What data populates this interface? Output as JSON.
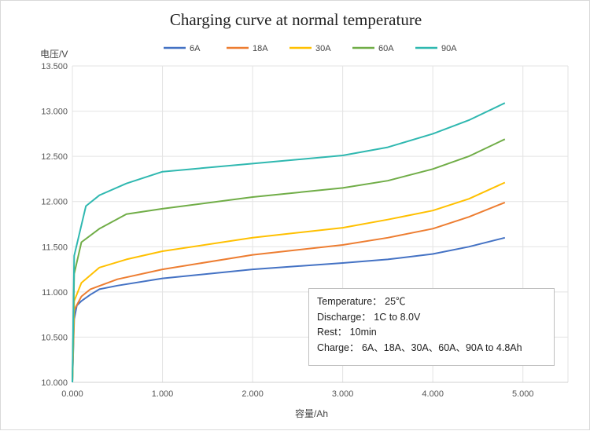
{
  "chart_data": {
    "type": "line",
    "title": "Charging curve at normal temperature",
    "xlabel": "容量/Ah",
    "ylabel": "电压/V",
    "xlim": [
      0,
      5.5
    ],
    "ylim": [
      10,
      13.5
    ],
    "xticks": [
      "0.000",
      "1.000",
      "2.000",
      "3.000",
      "4.000",
      "5.000"
    ],
    "yticks": [
      "10.000",
      "10.500",
      "11.000",
      "11.500",
      "12.000",
      "12.500",
      "13.000",
      "13.500"
    ],
    "grid": true,
    "legend": "top",
    "series": [
      {
        "name": "6A",
        "color": "#4472c4",
        "x": [
          0,
          0.02,
          0.05,
          0.1,
          0.2,
          0.3,
          0.5,
          1,
          2,
          3,
          3.5,
          4,
          4.4,
          4.8
        ],
        "y": [
          10,
          10.7,
          10.85,
          10.9,
          10.97,
          11.03,
          11.07,
          11.15,
          11.25,
          11.32,
          11.36,
          11.42,
          11.5,
          11.6
        ]
      },
      {
        "name": "18A",
        "color": "#ed7d31",
        "x": [
          0,
          0.02,
          0.1,
          0.2,
          0.5,
          1,
          2,
          3,
          3.5,
          4,
          4.4,
          4.8
        ],
        "y": [
          10,
          10.8,
          10.95,
          11.03,
          11.14,
          11.25,
          11.41,
          11.52,
          11.6,
          11.7,
          11.83,
          11.99
        ]
      },
      {
        "name": "30A",
        "color": "#ffc000",
        "x": [
          0,
          0.02,
          0.1,
          0.3,
          0.6,
          1,
          2,
          3,
          3.5,
          4,
          4.4,
          4.8
        ],
        "y": [
          10,
          10.9,
          11.1,
          11.27,
          11.36,
          11.45,
          11.6,
          11.71,
          11.8,
          11.9,
          12.03,
          12.21
        ]
      },
      {
        "name": "60A",
        "color": "#70ad47",
        "x": [
          0,
          0.02,
          0.1,
          0.3,
          0.6,
          1,
          2,
          3,
          3.5,
          4,
          4.4,
          4.8
        ],
        "y": [
          10,
          11.2,
          11.55,
          11.7,
          11.86,
          11.92,
          12.05,
          12.15,
          12.23,
          12.36,
          12.5,
          12.69
        ]
      },
      {
        "name": "90A",
        "color": "#2fb8b0",
        "x": [
          0,
          0.02,
          0.15,
          0.3,
          0.6,
          1,
          2,
          3,
          3.5,
          4,
          4.4,
          4.8
        ],
        "y": [
          10,
          11.4,
          11.95,
          12.07,
          12.2,
          12.33,
          12.42,
          12.51,
          12.6,
          12.75,
          12.9,
          13.09
        ]
      }
    ],
    "annotation": [
      "Temperature： 25℃",
      "Discharge： 1C to 8.0V",
      "Rest： 10min",
      "Charge： 6A、18A、30A、60A、90A  to 4.8Ah"
    ]
  }
}
